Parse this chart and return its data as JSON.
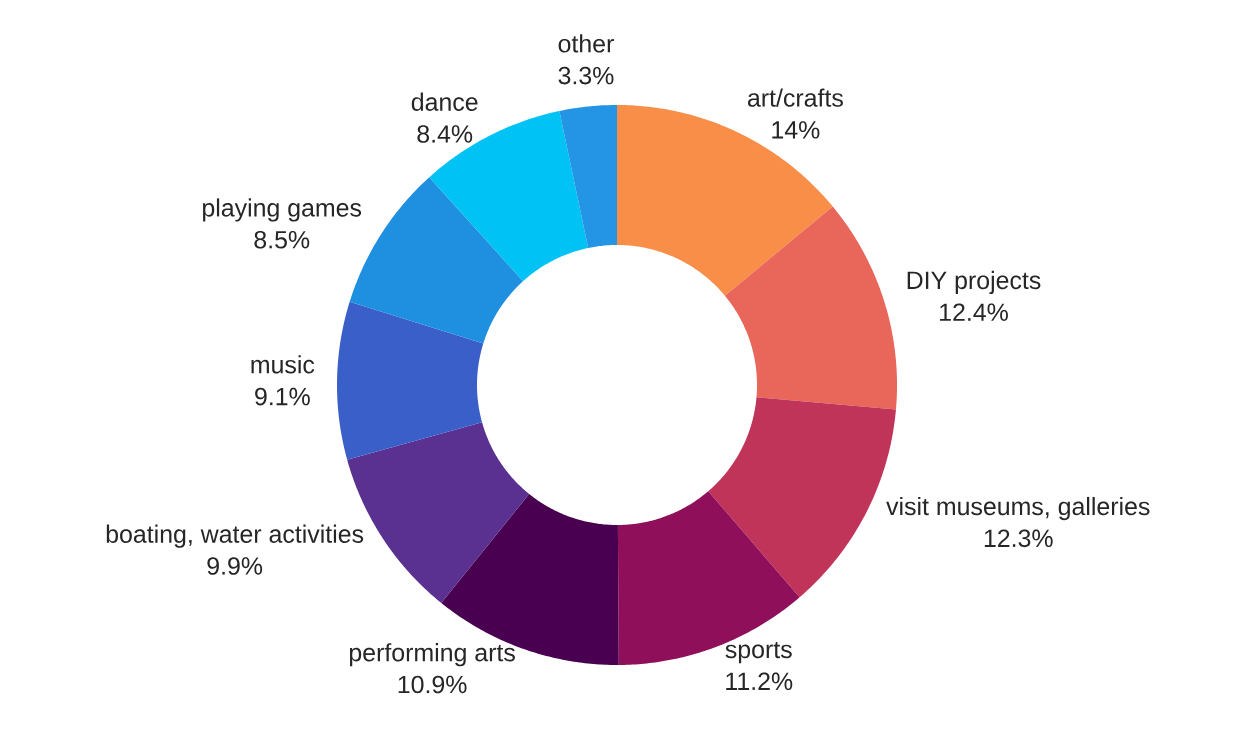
{
  "chart_data": {
    "type": "donut",
    "categories": [
      "art/crafts",
      "DIY projects",
      "visit museums, galleries",
      "sports",
      "performing arts",
      "boating, water activities",
      "music",
      "playing games",
      "dance",
      "other"
    ],
    "values": [
      14,
      12.4,
      12.3,
      11.2,
      10.9,
      9.9,
      9.1,
      8.5,
      8.4,
      3.3
    ],
    "value_labels": [
      "14%",
      "12.4%",
      "12.3%",
      "11.2%",
      "10.9%",
      "9.9%",
      "9.1%",
      "8.5%",
      "8.4%",
      "3.3%"
    ],
    "colors": [
      "#f98e48",
      "#e8665a",
      "#c0345a",
      "#8f0f5a",
      "#4a0050",
      "#5a3090",
      "#3a5fc8",
      "#1f8fe0",
      "#00c2f5",
      "#2494e4"
    ]
  }
}
